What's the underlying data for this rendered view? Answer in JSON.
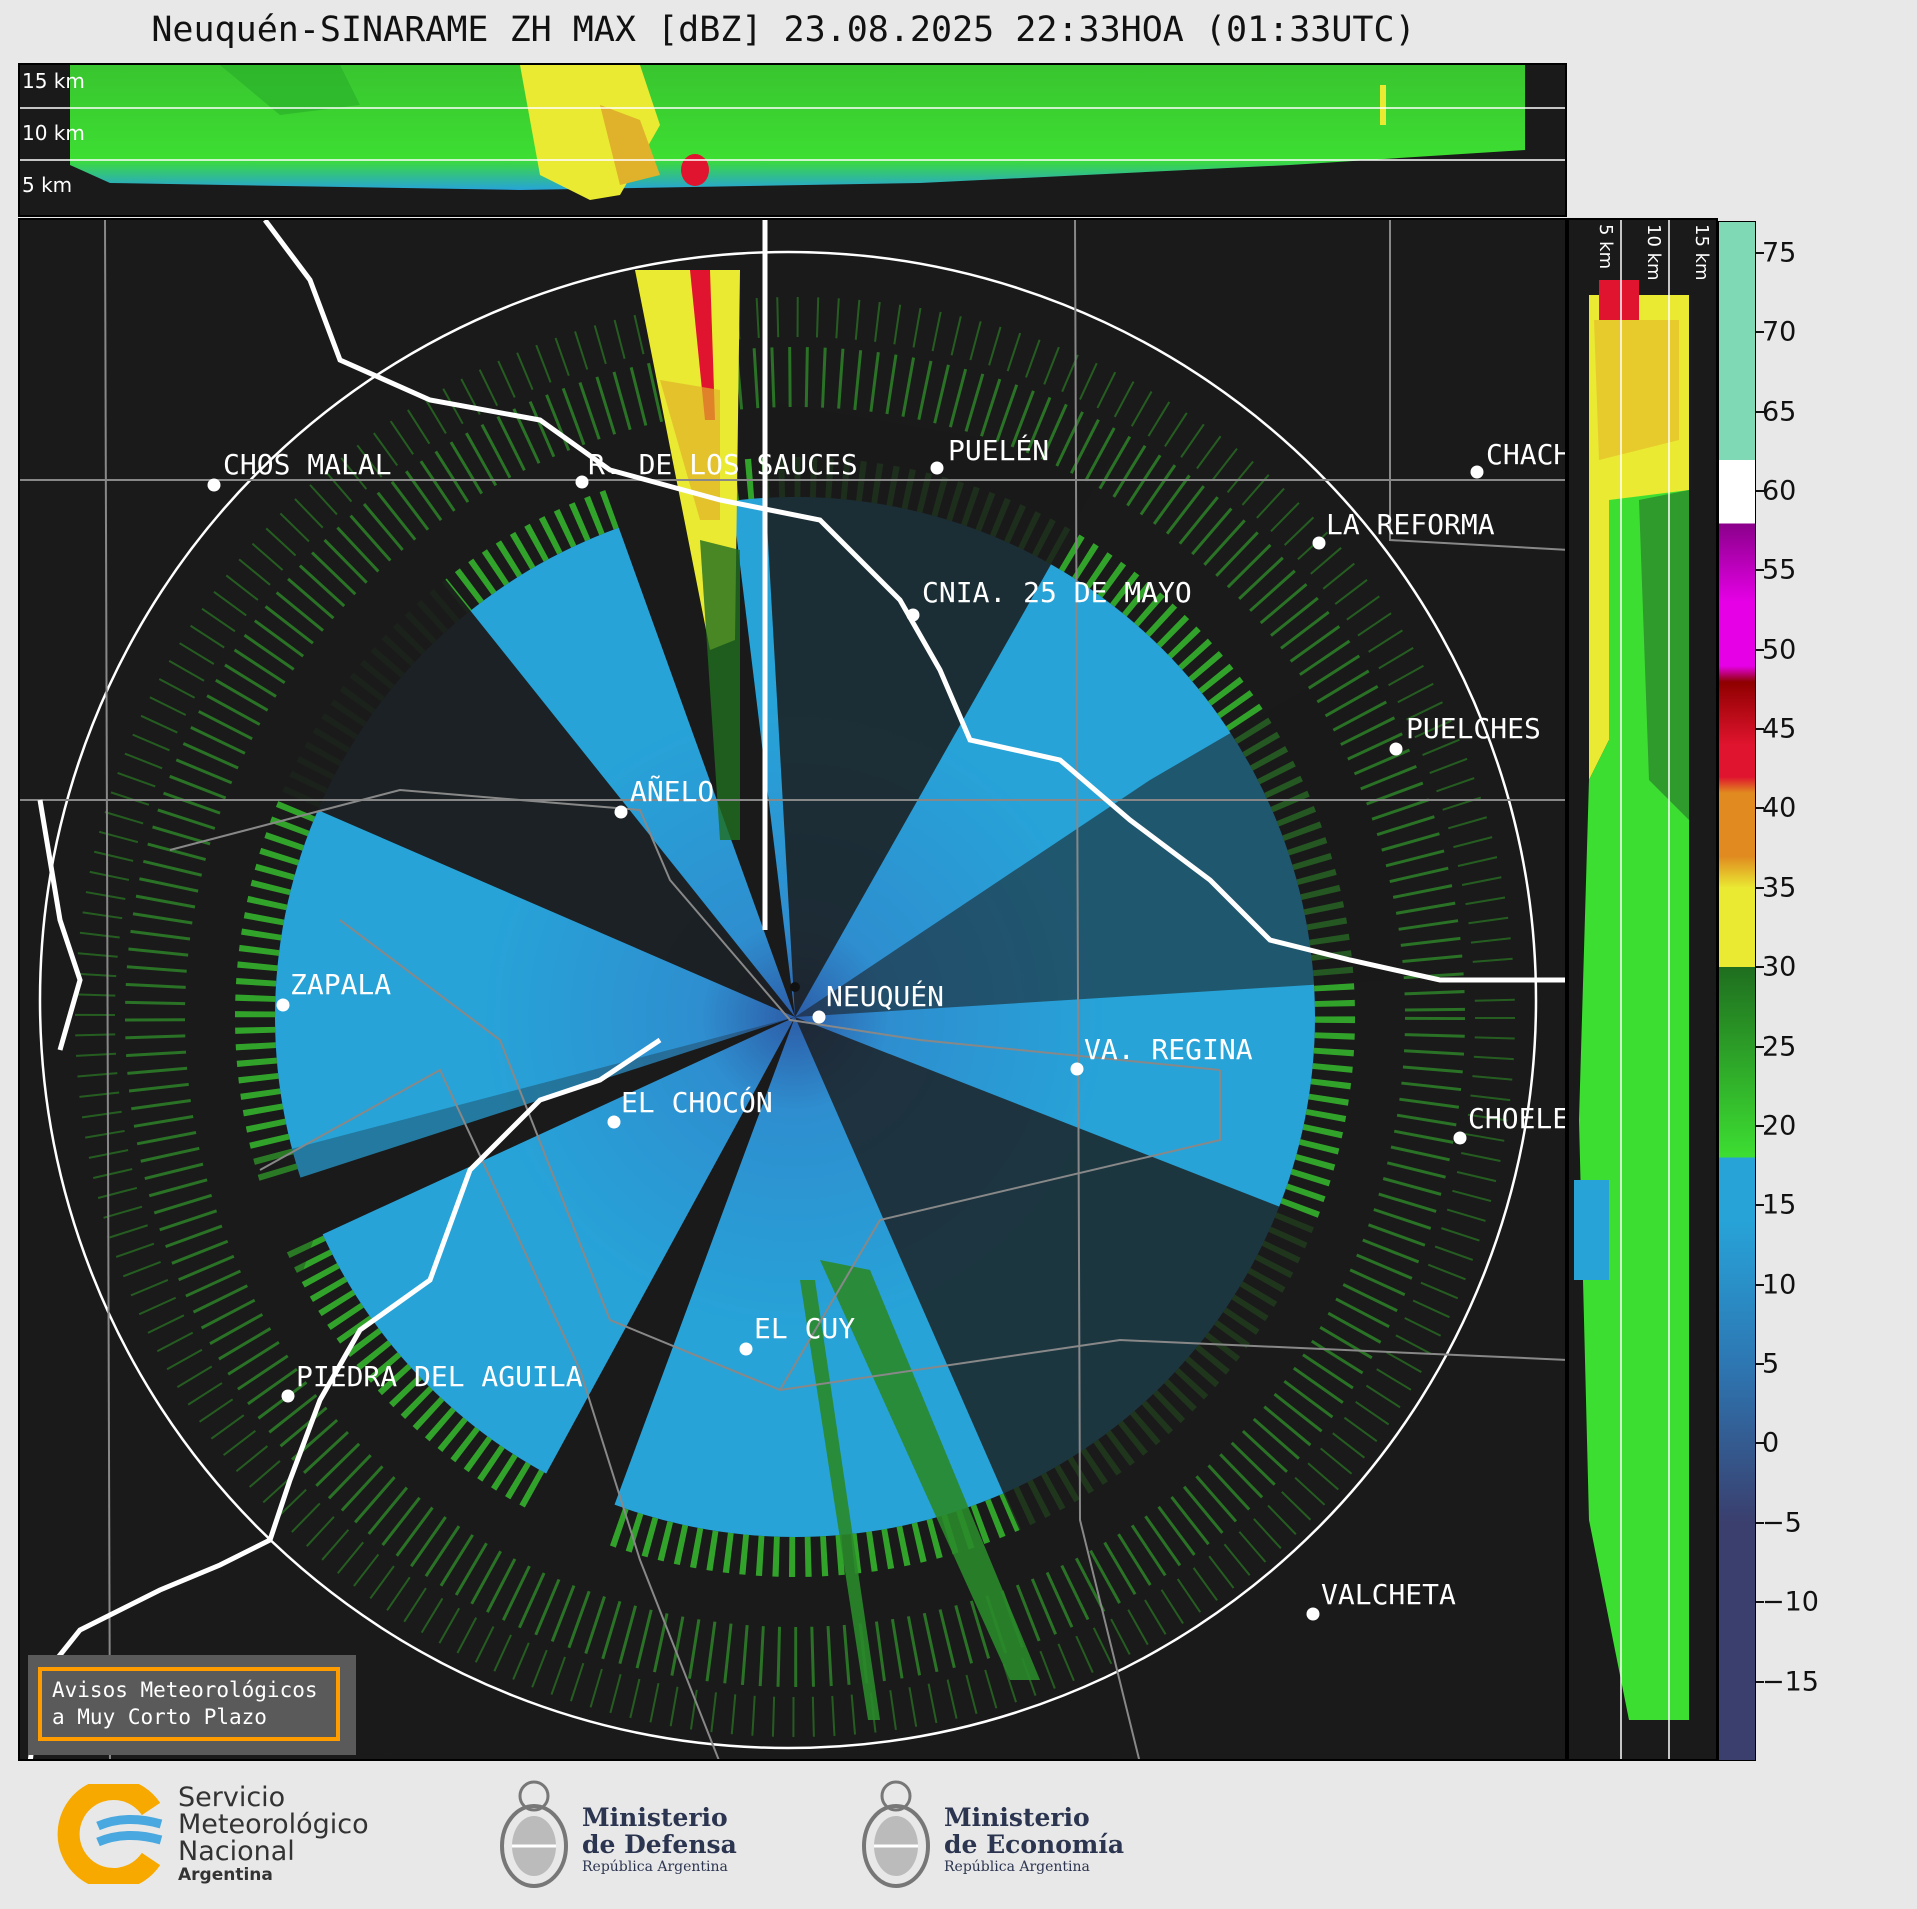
{
  "title": "Neuquén-SINARAME ZH MAX [dBZ] 23.08.2025 22:33HOA (01:33UTC)",
  "top_panel": {
    "altitude_labels": [
      "15 km",
      "10 km",
      "5 km"
    ]
  },
  "side_panel": {
    "altitude_labels": [
      "5 km",
      "10 km",
      "15 km"
    ]
  },
  "cities": [
    {
      "name": "CHOS MALAL"
    },
    {
      "name": "R. DE LOS SAUCES"
    },
    {
      "name": "PUELÉN"
    },
    {
      "name": "CHACH"
    },
    {
      "name": "LA REFORMA"
    },
    {
      "name": "CNIA. 25 DE MAYO"
    },
    {
      "name": "PUELCHES"
    },
    {
      "name": "AÑELO"
    },
    {
      "name": "ZAPALA"
    },
    {
      "name": "NEUQUÉN"
    },
    {
      "name": "VA. REGINA"
    },
    {
      "name": "EL CHOCÓN"
    },
    {
      "name": "CHOELE"
    },
    {
      "name": "EL CUY"
    },
    {
      "name": "PIEDRA DEL AGUILA"
    },
    {
      "name": "VALCHETA"
    }
  ],
  "colorbar": {
    "ticks": [
      "75",
      "70",
      "65",
      "60",
      "55",
      "50",
      "45",
      "40",
      "35",
      "30",
      "25",
      "20",
      "15",
      "10",
      "5",
      "0",
      "−5",
      "−10",
      "−15"
    ],
    "range": [
      -20,
      77
    ],
    "colors": {
      "neg": "#3a3f6e",
      "low": "#2d77b3",
      "blue": "#27a3d8",
      "green": "#3dde32",
      "darkgreen": "#1f6e1f",
      "yellow": "#eaea33",
      "orange": "#e08a1f",
      "red": "#e0142e",
      "darkred": "#8f0000",
      "magenta": "#e600e6",
      "purple": "#8a008a",
      "white": "#ffffff",
      "teal": "#7fd9b5"
    }
  },
  "notice": {
    "line1": "Avisos Meteorológicos",
    "line2": "a Muy Corto Plazo"
  },
  "logos": {
    "smn": {
      "line1": "Servicio",
      "line2": "Meteorológico",
      "line3": "Nacional",
      "line4": "Argentina"
    },
    "defensa": {
      "line1": "Ministerio",
      "line2": "de Defensa",
      "line3": "República Argentina"
    },
    "economia": {
      "line1": "Ministerio",
      "line2": "de Economía",
      "line3": "República Argentina"
    }
  }
}
